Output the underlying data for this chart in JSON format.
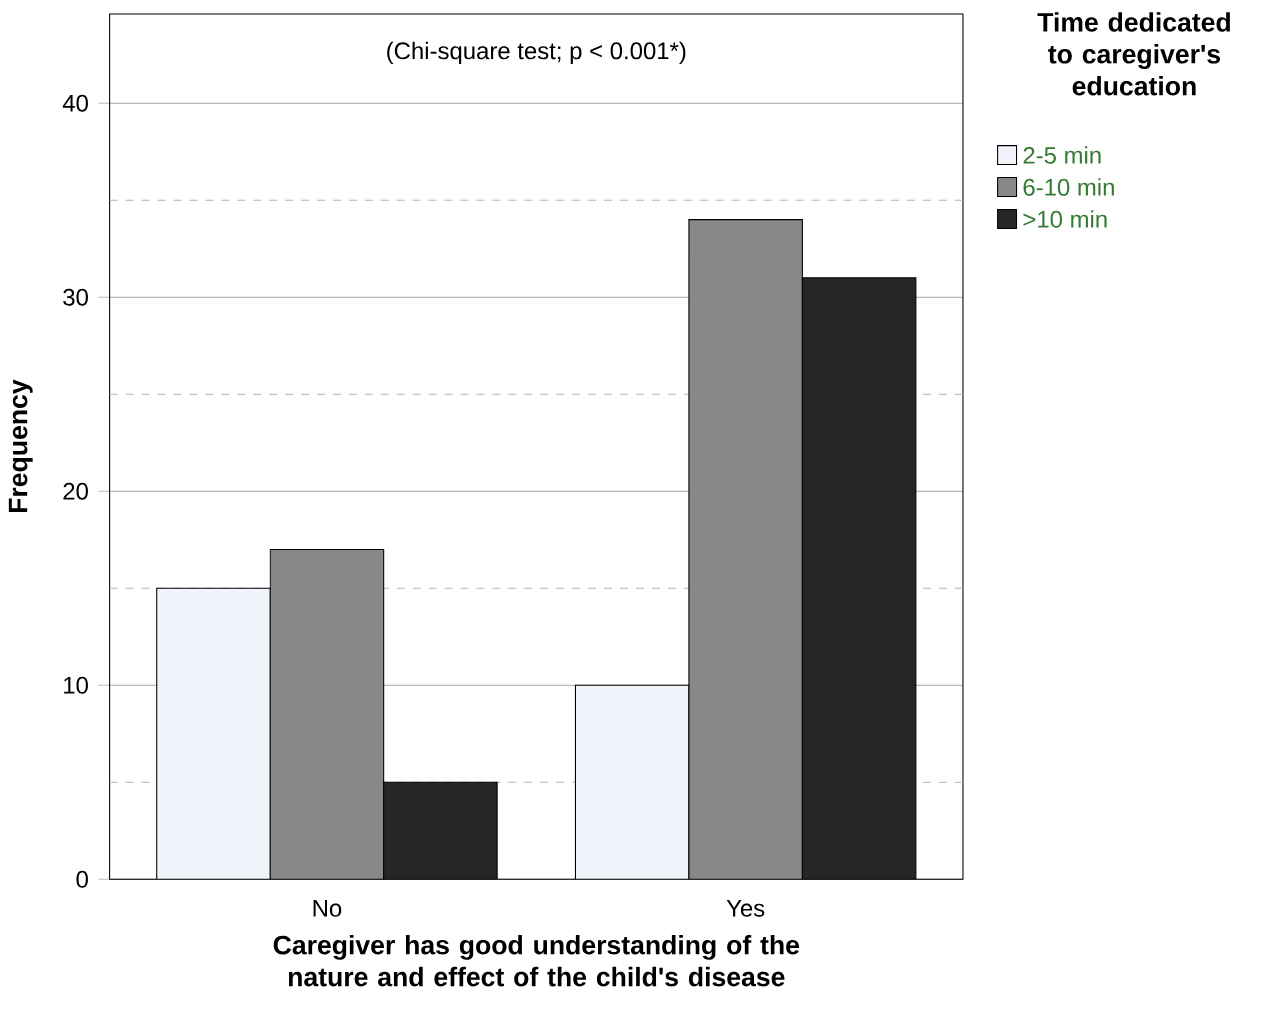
{
  "chart_data": {
    "type": "bar",
    "xlabel": "Caregiver has good understanding of the nature and effect of the child's disease",
    "ylabel": "Frequency",
    "legend_title": "Time dedicated to caregiver's education",
    "annotations": [
      "(Chi-square test; p < 0.001*)"
    ],
    "categories": [
      "No",
      "Yes"
    ],
    "series": [
      {
        "name": "2-5 min",
        "color": "#f0f4fa",
        "values": [
          15,
          10
        ]
      },
      {
        "name": "6-10 min",
        "color": "#888888",
        "values": [
          17,
          34
        ]
      },
      {
        "name": ">10 min",
        "color": "#262626",
        "values": [
          5,
          31
        ]
      }
    ],
    "ylim": [
      0,
      44.6
    ],
    "yticks": [
      0,
      {
        "value": 5,
        "label": null
      },
      10,
      {
        "value": 15,
        "label": null
      },
      20,
      {
        "value": 25,
        "label": null
      },
      30,
      {
        "value": 35,
        "label": null
      },
      40
    ],
    "grid": "y",
    "legend": "top right"
  }
}
